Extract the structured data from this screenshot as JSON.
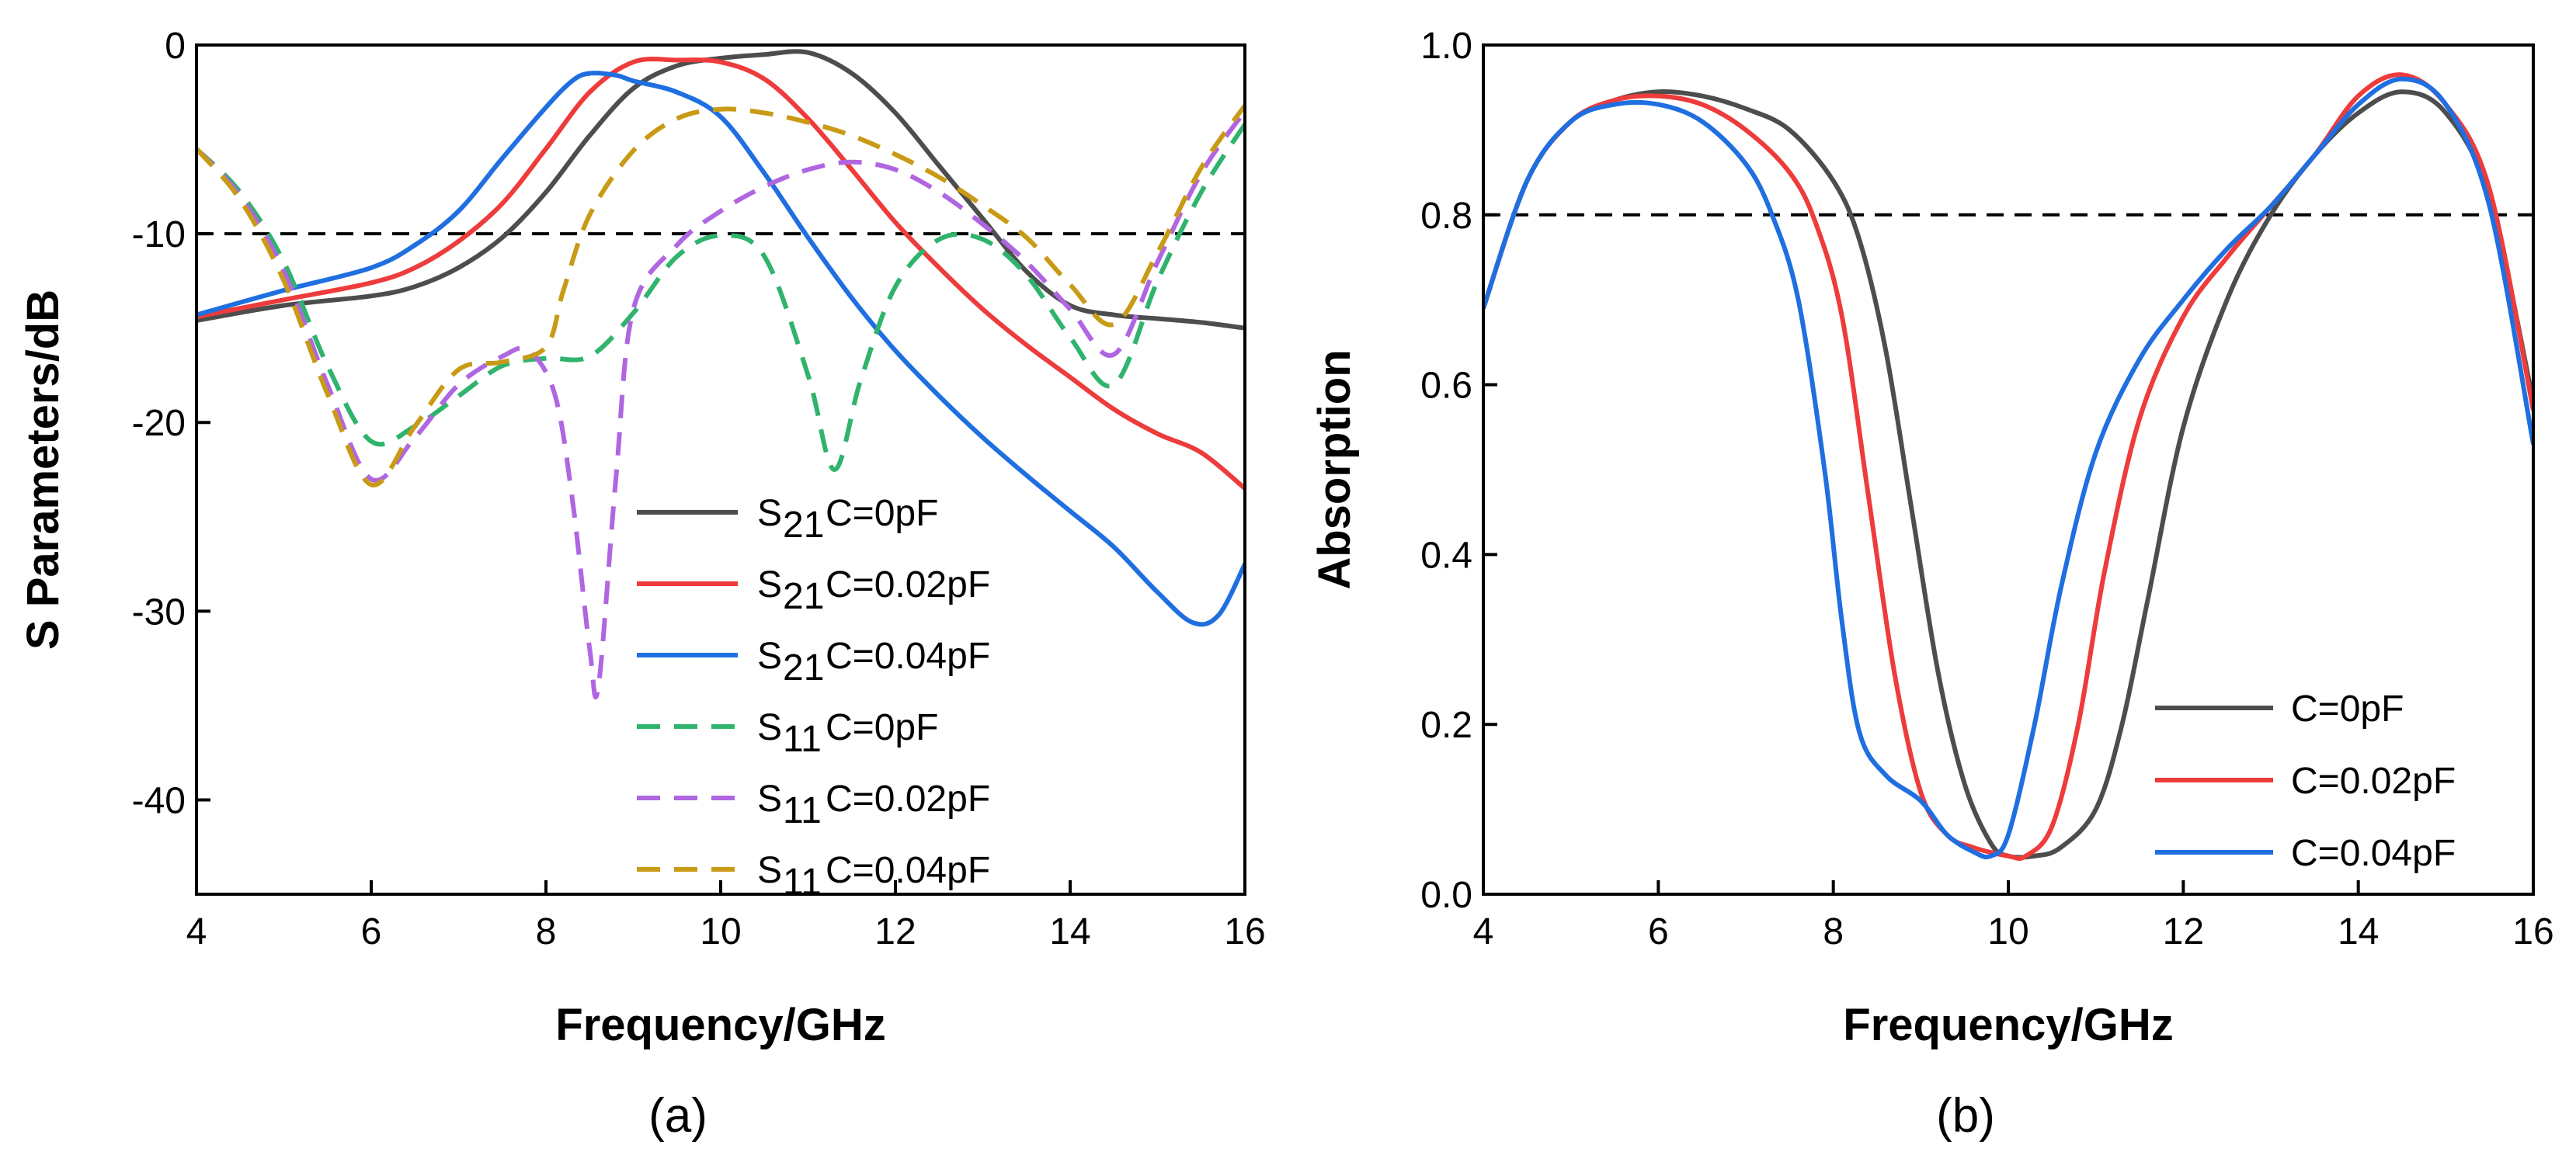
{
  "colors": {
    "black": "#4d4d4d",
    "red": "#ee3b3b",
    "blue": "#1f6fe0",
    "green": "#2fb36d",
    "purple": "#b066e0",
    "gold": "#c99a16"
  },
  "chart_data": [
    {
      "type": "line",
      "panel_label": "(a)",
      "xlabel": "Frequency/GHz",
      "ylabel": "S Parameters/dB",
      "xlim": [
        4,
        16
      ],
      "ylim": [
        -45,
        0
      ],
      "xticks": [
        4,
        6,
        8,
        10,
        12,
        14,
        16
      ],
      "yticks": [
        0,
        -10,
        -20,
        -30,
        -40
      ],
      "xtick_labels": [
        "4",
        "6",
        "8",
        "10",
        "12",
        "14",
        "16"
      ],
      "ytick_labels": [
        "0",
        "-10",
        "-20",
        "-30",
        "-40"
      ],
      "reference_line": {
        "y": -10,
        "style": "dashed"
      },
      "legend_position": "lower-center",
      "series": [
        {
          "name": "S21 C=0pF",
          "param": "S",
          "sub": "21",
          "label": "C=0pF",
          "color": "#4d4d4d",
          "dash": false,
          "x": [
            4,
            5,
            6,
            6.5,
            7,
            7.5,
            8,
            8.5,
            9,
            9.5,
            10,
            10.5,
            11,
            11.5,
            12,
            12.5,
            13,
            13.5,
            14,
            14.5,
            15,
            15.5,
            16
          ],
          "y": [
            -14.6,
            -13.8,
            -13.3,
            -12.8,
            -11.8,
            -10.2,
            -7.8,
            -4.8,
            -2.3,
            -1.1,
            -0.7,
            -0.5,
            -0.4,
            -1.5,
            -3.6,
            -6.4,
            -9.2,
            -12.0,
            -13.8,
            -14.3,
            -14.5,
            -14.7,
            -15.0
          ]
        },
        {
          "name": "S21 C=0.02pF",
          "param": "S",
          "sub": "21",
          "label": "C=0.02pF",
          "color": "#ee3b3b",
          "dash": false,
          "x": [
            4,
            5,
            6,
            6.5,
            7,
            7.5,
            8,
            8.5,
            9,
            9.5,
            10,
            10.5,
            11,
            11.5,
            12,
            12.5,
            13,
            13.5,
            14,
            14.5,
            15,
            15.5,
            16
          ],
          "y": [
            -14.4,
            -13.5,
            -12.6,
            -11.8,
            -10.4,
            -8.4,
            -5.5,
            -2.5,
            -0.9,
            -0.8,
            -0.9,
            -1.8,
            -3.9,
            -6.6,
            -9.4,
            -11.8,
            -14.0,
            -15.9,
            -17.6,
            -19.3,
            -20.6,
            -21.6,
            -23.5
          ]
        },
        {
          "name": "S21 C=0.04pF",
          "param": "S",
          "sub": "21",
          "label": "C=0.04pF",
          "color": "#1f6fe0",
          "dash": false,
          "x": [
            4,
            5,
            6,
            6.5,
            7,
            7.5,
            8,
            8.3,
            8.5,
            8.8,
            9,
            9.5,
            10,
            10.5,
            11,
            11.5,
            12,
            12.5,
            13,
            13.5,
            14,
            14.5,
            15,
            15.4,
            15.7,
            16
          ],
          "y": [
            -14.3,
            -13.0,
            -11.8,
            -10.6,
            -8.8,
            -6.0,
            -3.3,
            -1.9,
            -1.5,
            -1.6,
            -1.9,
            -2.5,
            -3.8,
            -6.8,
            -10.2,
            -13.4,
            -16.2,
            -18.6,
            -20.8,
            -22.8,
            -24.7,
            -26.6,
            -29.0,
            -30.6,
            -30.2,
            -27.5
          ]
        },
        {
          "name": "S11 C=0pF",
          "param": "S",
          "sub": "11",
          "label": "C=0pF",
          "color": "#2fb36d",
          "dash": true,
          "x": [
            4,
            4.5,
            5,
            5.5,
            6,
            6.5,
            7,
            7.5,
            8,
            8.5,
            9,
            9.5,
            10,
            10.5,
            11,
            11.3,
            11.6,
            12,
            12.5,
            13,
            13.5,
            14,
            14.5,
            15,
            15.5,
            16
          ],
          "y": [
            -5.5,
            -7.8,
            -11.5,
            -17.0,
            -21.0,
            -20.2,
            -18.6,
            -17.0,
            -16.6,
            -16.5,
            -14.2,
            -11.2,
            -10.1,
            -11.2,
            -17.5,
            -22.5,
            -17.8,
            -12.8,
            -10.3,
            -10.3,
            -12.2,
            -15.5,
            -18.0,
            -12.5,
            -7.8,
            -4.2
          ]
        },
        {
          "name": "S11 C=0.02pF",
          "param": "S",
          "sub": "11",
          "label": "C=0.02pF",
          "color": "#b066e0",
          "dash": true,
          "x": [
            4,
            4.5,
            5,
            5.5,
            6,
            6.5,
            7,
            7.5,
            7.8,
            8.1,
            8.3,
            8.5,
            8.6,
            8.8,
            9,
            9.5,
            10,
            10.5,
            11,
            11.5,
            12,
            12.5,
            13,
            13.5,
            14,
            14.5,
            15,
            15.5,
            16
          ],
          "y": [
            -5.5,
            -8.0,
            -12.0,
            -18.0,
            -23.0,
            -20.8,
            -18.0,
            -16.5,
            -16.2,
            -18.5,
            -24.0,
            -32.0,
            -34.0,
            -23.0,
            -14.0,
            -10.6,
            -8.8,
            -7.5,
            -6.6,
            -6.2,
            -6.6,
            -7.8,
            -9.5,
            -11.5,
            -14.0,
            -16.4,
            -11.5,
            -6.8,
            -3.5
          ]
        },
        {
          "name": "S11 C=0.04pF",
          "param": "S",
          "sub": "11",
          "label": "C=0.04pF",
          "color": "#c99a16",
          "dash": true,
          "x": [
            4,
            4.5,
            5,
            5.5,
            6,
            6.5,
            7,
            7.5,
            8,
            8.2,
            8.5,
            9,
            9.5,
            10,
            10.5,
            11,
            11.5,
            12,
            12.5,
            13,
            13.5,
            14,
            14.5,
            15,
            15.5,
            16
          ],
          "y": [
            -5.5,
            -8.2,
            -12.5,
            -18.5,
            -23.3,
            -20.2,
            -17.2,
            -16.8,
            -16.0,
            -13.0,
            -9.0,
            -5.6,
            -3.9,
            -3.4,
            -3.6,
            -4.1,
            -4.8,
            -5.8,
            -7.0,
            -8.5,
            -10.2,
            -12.7,
            -14.8,
            -11.0,
            -6.5,
            -3.2
          ]
        }
      ]
    },
    {
      "type": "line",
      "panel_label": "(b)",
      "xlabel": "Frequency/GHz",
      "ylabel": "Absorption",
      "xlim": [
        4,
        16
      ],
      "ylim": [
        0,
        1
      ],
      "xticks": [
        4,
        6,
        8,
        10,
        12,
        14,
        16
      ],
      "yticks": [
        0,
        0.2,
        0.4,
        0.6,
        0.8,
        1.0
      ],
      "xtick_labels": [
        "4",
        "6",
        "8",
        "10",
        "12",
        "14",
        "16"
      ],
      "ytick_labels": [
        "0.0",
        "0.2",
        "0.4",
        "0.6",
        "0.8",
        "1.0"
      ],
      "reference_line": {
        "y": 0.8,
        "style": "dashed"
      },
      "legend_position": "lower-right",
      "series": [
        {
          "name": "C=0pF",
          "label": "C=0pF",
          "color": "#4d4d4d",
          "dash": false,
          "x": [
            4,
            4.5,
            5,
            5.5,
            6,
            6.5,
            7,
            7.5,
            8,
            8.3,
            8.6,
            8.9,
            9.2,
            9.5,
            9.8,
            10,
            10.3,
            10.6,
            11,
            11.3,
            11.6,
            12,
            12.5,
            13,
            13.5,
            14,
            14.5,
            15,
            15.5,
            16
          ],
          "y": [
            0.69,
            0.84,
            0.91,
            0.935,
            0.945,
            0.94,
            0.925,
            0.9,
            0.84,
            0.77,
            0.64,
            0.45,
            0.26,
            0.13,
            0.06,
            0.045,
            0.045,
            0.055,
            0.1,
            0.2,
            0.35,
            0.55,
            0.7,
            0.8,
            0.87,
            0.92,
            0.945,
            0.92,
            0.82,
            0.58
          ]
        },
        {
          "name": "C=0.02pF",
          "label": "C=0.02pF",
          "color": "#ee3b3b",
          "dash": false,
          "x": [
            4,
            4.5,
            5,
            5.5,
            6,
            6.5,
            7,
            7.5,
            7.8,
            8.1,
            8.4,
            8.7,
            9,
            9.3,
            9.6,
            10,
            10.2,
            10.5,
            10.8,
            11.1,
            11.5,
            12,
            12.5,
            13,
            13.5,
            14,
            14.5,
            15,
            15.5,
            16
          ],
          "y": [
            0.69,
            0.84,
            0.91,
            0.935,
            0.94,
            0.93,
            0.9,
            0.85,
            0.79,
            0.68,
            0.47,
            0.26,
            0.12,
            0.07,
            0.055,
            0.045,
            0.045,
            0.08,
            0.2,
            0.38,
            0.56,
            0.68,
            0.75,
            0.81,
            0.87,
            0.94,
            0.965,
            0.93,
            0.83,
            0.57
          ]
        },
        {
          "name": "C=0.04pF",
          "label": "C=0.04pF",
          "color": "#1f6fe0",
          "dash": false,
          "x": [
            4,
            4.5,
            5,
            5.5,
            6,
            6.5,
            7,
            7.3,
            7.6,
            7.9,
            8.1,
            8.3,
            8.6,
            9,
            9.3,
            9.6,
            9.8,
            10,
            10.3,
            10.6,
            11,
            11.5,
            12,
            12.5,
            13,
            13.5,
            14,
            14.5,
            15,
            15.5,
            16
          ],
          "y": [
            0.69,
            0.84,
            0.91,
            0.93,
            0.93,
            0.91,
            0.86,
            0.8,
            0.7,
            0.5,
            0.32,
            0.19,
            0.14,
            0.11,
            0.07,
            0.05,
            0.045,
            0.07,
            0.2,
            0.36,
            0.52,
            0.63,
            0.7,
            0.76,
            0.81,
            0.87,
            0.93,
            0.96,
            0.93,
            0.81,
            0.53
          ]
        }
      ]
    }
  ]
}
